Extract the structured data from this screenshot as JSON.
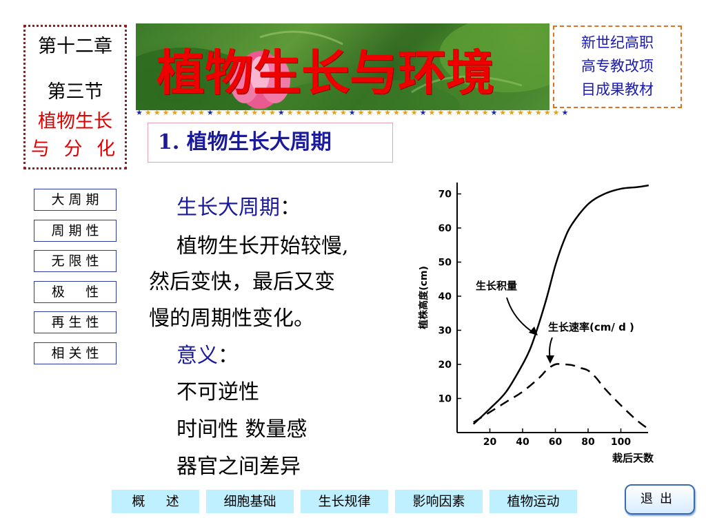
{
  "chapter": {
    "line1": "第十二章",
    "line2": "第三节",
    "line3": "植物生长",
    "line4": "与 分 化"
  },
  "banner": {
    "title": "植物生长与环境"
  },
  "series": {
    "lines": [
      "新世纪高职",
      "高专教改项",
      "目成果教材"
    ]
  },
  "section_title": "1. 植物生长大周期",
  "sidebar": {
    "items": [
      {
        "label": "大 周 期"
      },
      {
        "label": "周 期 性"
      },
      {
        "label": "无 限 性"
      },
      {
        "label": "极     性"
      },
      {
        "label": "再 生 性"
      },
      {
        "label": "相 关 性"
      }
    ]
  },
  "content": {
    "heading1": "生长大周期",
    "colon": "：",
    "para_line1": "植物生长开始较慢,",
    "para_line2": "然后变快，最后又变",
    "para_line3": "慢的周期性变化。",
    "heading2": "意义",
    "item1": "不可逆性",
    "item2": "时间性   数量感",
    "item3": "器官之间差异"
  },
  "bottom_nav": {
    "items": [
      {
        "label": "概     述"
      },
      {
        "label": "细胞基础"
      },
      {
        "label": "生长规律"
      },
      {
        "label": "影响因素"
      },
      {
        "label": "植物运动"
      }
    ],
    "exit_label": "退出"
  },
  "colors": {
    "accent_red": "#ee0000",
    "navy": "#1a1a9a",
    "nav_bg": "#bff0ff"
  },
  "chart_data": {
    "type": "line",
    "xlabel": "栽后天数",
    "ylabel": "植株高度(cm)",
    "x_ticks": [
      20,
      40,
      60,
      80,
      100
    ],
    "y_ticks": [
      10,
      20,
      30,
      40,
      50,
      60,
      70
    ],
    "xlim": [
      0,
      120
    ],
    "ylim": [
      0,
      80
    ],
    "series": [
      {
        "name": "生长积量",
        "style": "solid",
        "x": [
          10,
          20,
          30,
          40,
          45,
          50,
          55,
          60,
          65,
          70,
          80,
          90,
          100,
          110,
          117
        ],
        "y": [
          2.5,
          7,
          12,
          20,
          25,
          32,
          40,
          49,
          56,
          61,
          67,
          70,
          71.5,
          72,
          72.5
        ]
      },
      {
        "name": "生长速率(cm/ d )",
        "style": "dashed",
        "x": [
          10,
          20,
          30,
          40,
          50,
          55,
          60,
          65,
          70,
          75,
          80,
          85,
          90,
          100,
          110,
          117
        ],
        "y": [
          3,
          6,
          9,
          12,
          16,
          18.5,
          20,
          20,
          19.8,
          19,
          18.2,
          16,
          13,
          8,
          3.5,
          1
        ]
      }
    ]
  }
}
